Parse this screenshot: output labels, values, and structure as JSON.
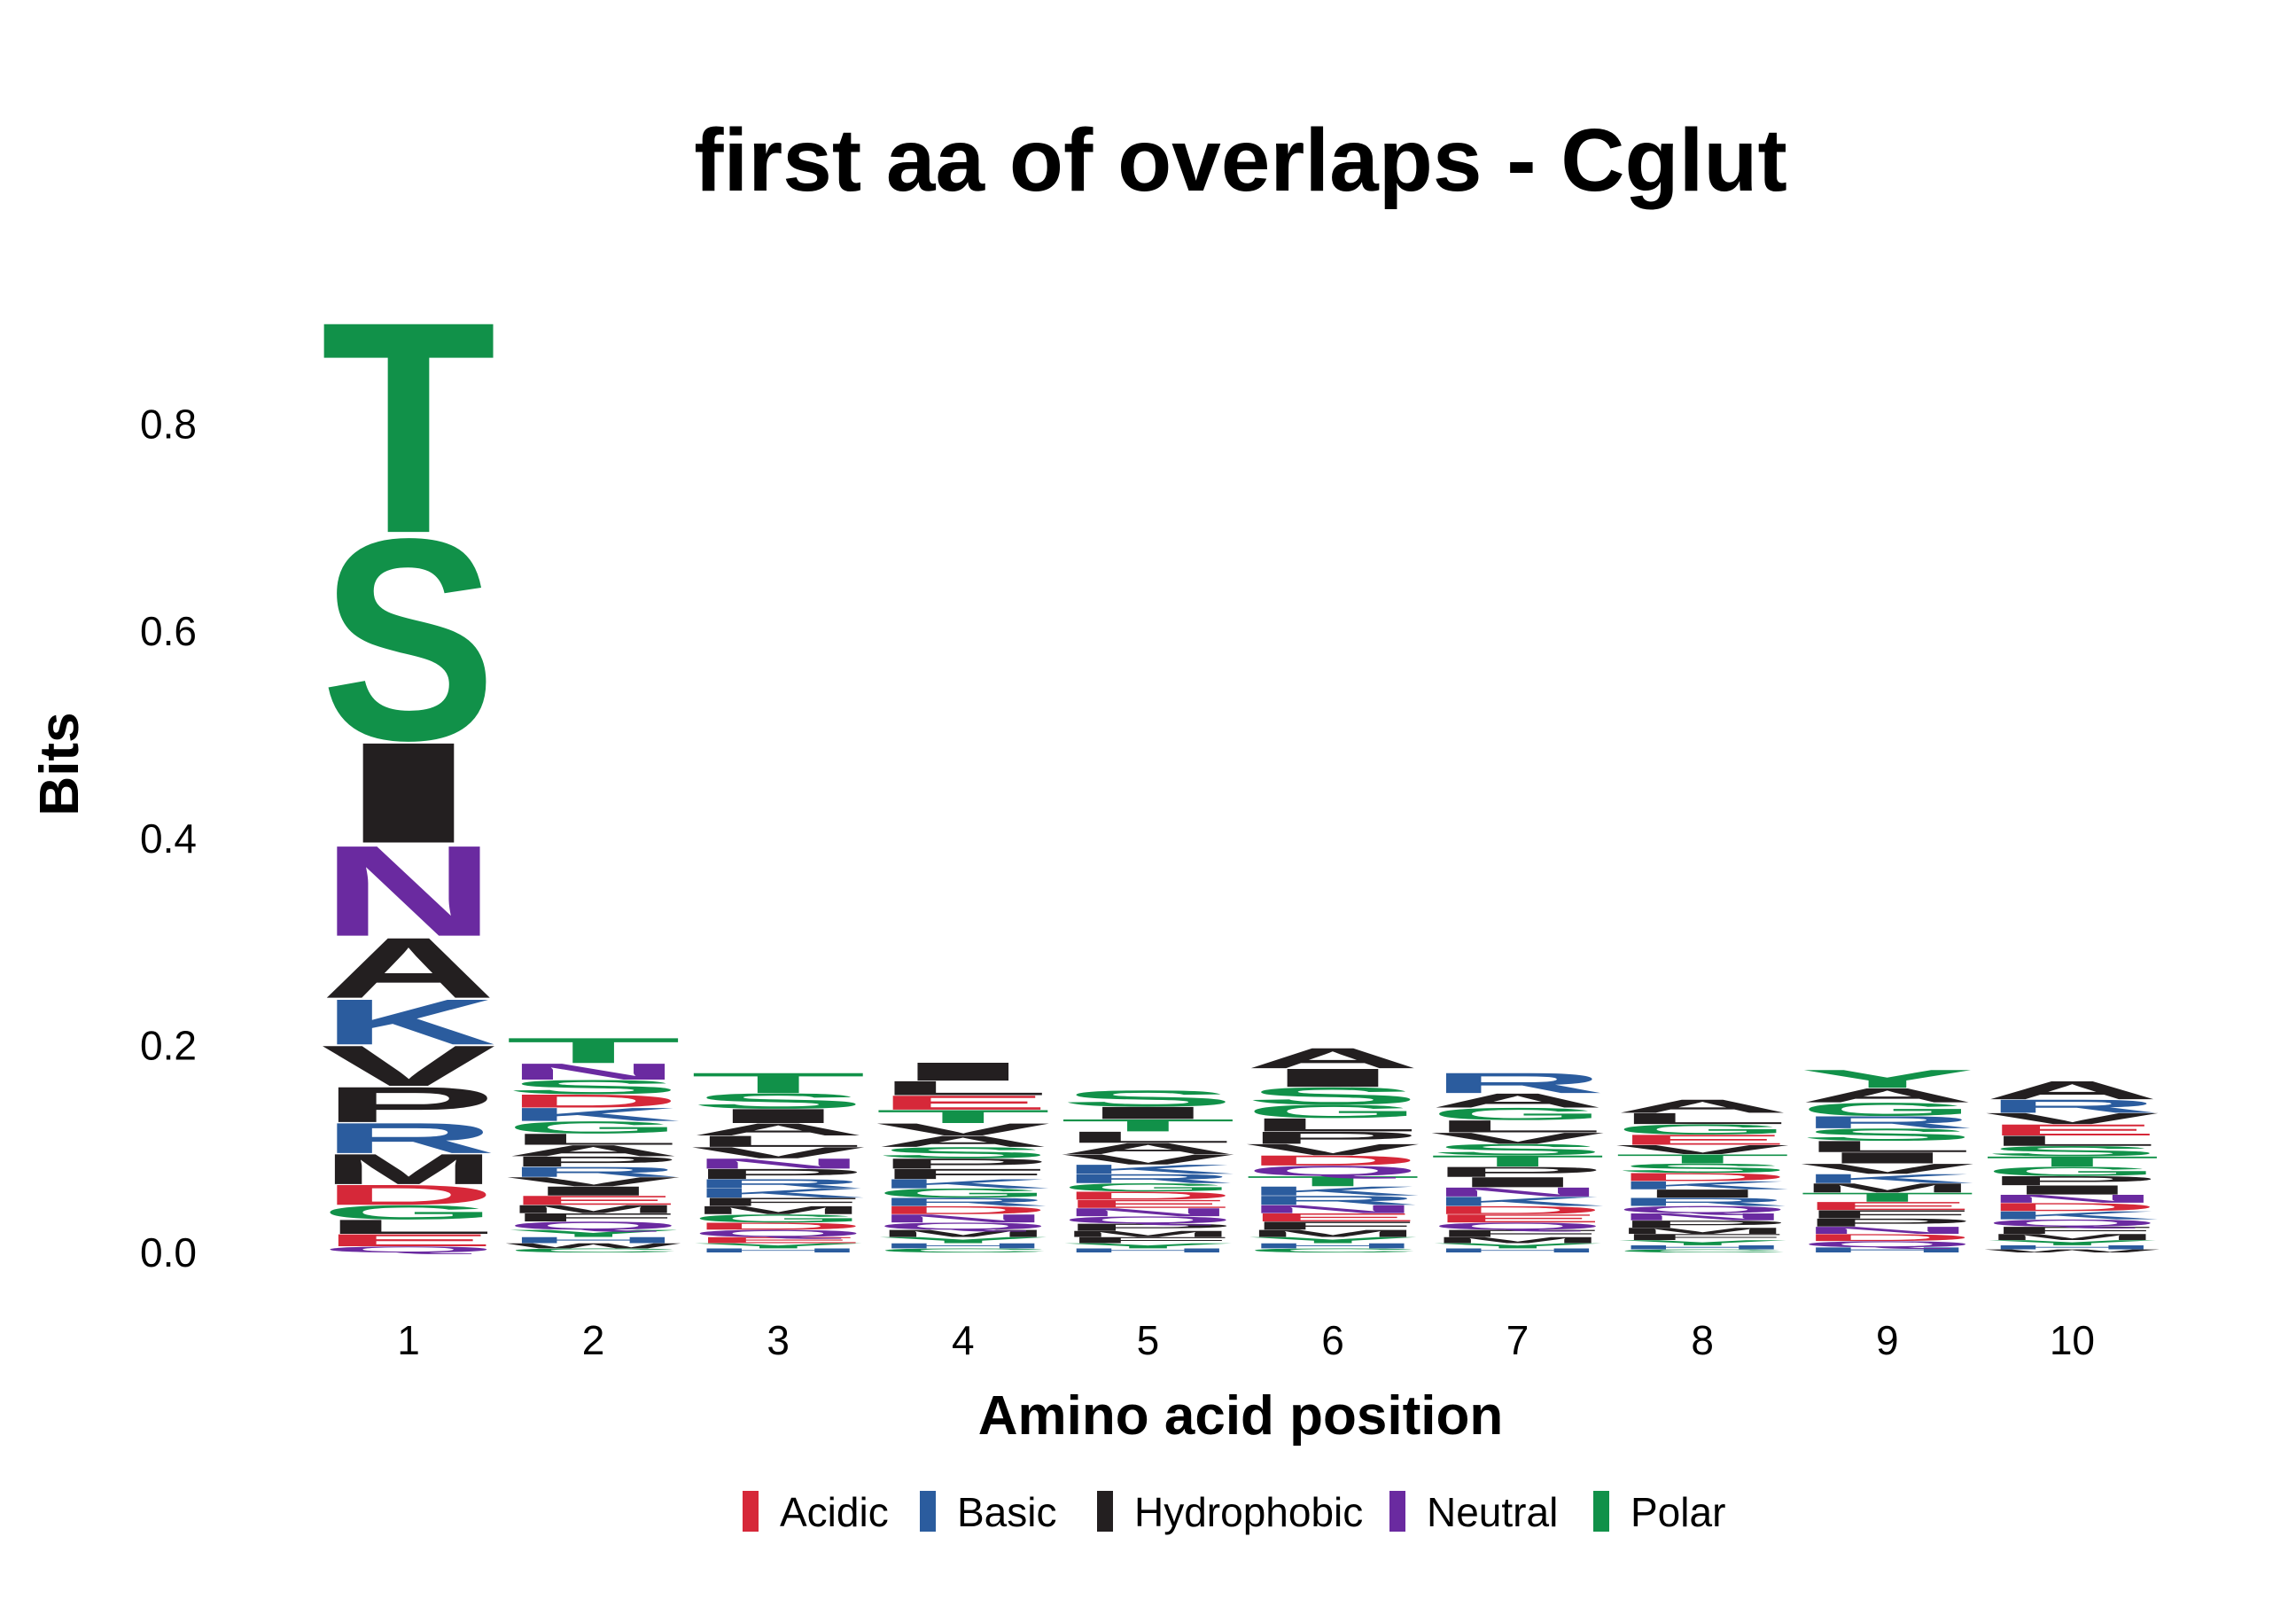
{
  "chart_data": {
    "type": "sequence-logo",
    "title": "first aa of overlaps - Cglut",
    "xlabel": "Amino acid position",
    "ylabel": "Bits",
    "ylim": [
      0,
      0.95
    ],
    "yticks": [
      0.0,
      0.2,
      0.4,
      0.6,
      0.8
    ],
    "ytick_labels": [
      "0.0",
      "0.2",
      "0.4",
      "0.6",
      "0.8"
    ],
    "positions": [
      "1",
      "2",
      "3",
      "4",
      "5",
      "6",
      "7",
      "8",
      "9",
      "10"
    ],
    "legend": [
      {
        "name": "Acidic",
        "color": "#d62839"
      },
      {
        "name": "Basic",
        "color": "#2b5c9e"
      },
      {
        "name": "Hydrophobic",
        "color": "#231f20"
      },
      {
        "name": "Neutral",
        "color": "#6a2aa0"
      },
      {
        "name": "Polar",
        "color": "#119149"
      }
    ],
    "stacks": [
      [
        {
          "letter": "T",
          "cls": "Polar",
          "bits": 0.21
        },
        {
          "letter": "S",
          "cls": "Polar",
          "bits": 0.2
        },
        {
          "letter": "I",
          "cls": "Hydrophobic",
          "bits": 0.1
        },
        {
          "letter": "N",
          "cls": "Neutral",
          "bits": 0.09
        },
        {
          "letter": "A",
          "cls": "Hydrophobic",
          "bits": 0.06
        },
        {
          "letter": "K",
          "cls": "Basic",
          "bits": 0.045
        },
        {
          "letter": "V",
          "cls": "Hydrophobic",
          "bits": 0.04
        },
        {
          "letter": "P",
          "cls": "Hydrophobic",
          "bits": 0.035
        },
        {
          "letter": "M",
          "cls": "Hydrophobic",
          "bits": 0.03
        },
        {
          "letter": "R",
          "cls": "Basic",
          "bits": 0.03
        },
        {
          "letter": "D",
          "cls": "Acidic",
          "bits": 0.02
        },
        {
          "letter": "L",
          "cls": "Hydrophobic",
          "bits": 0.014
        },
        {
          "letter": "G",
          "cls": "Polar",
          "bits": 0.014
        },
        {
          "letter": "E",
          "cls": "Acidic",
          "bits": 0.012
        },
        {
          "letter": "Q",
          "cls": "Neutral",
          "bits": 0.006
        }
      ],
      [
        {
          "letter": "T",
          "cls": "Polar",
          "bits": 0.025
        },
        {
          "letter": "N",
          "cls": "Neutral",
          "bits": 0.016
        },
        {
          "letter": "S",
          "cls": "Polar",
          "bits": 0.014
        },
        {
          "letter": "K",
          "cls": "Basic",
          "bits": 0.013
        },
        {
          "letter": "D",
          "cls": "Acidic",
          "bits": 0.013
        },
        {
          "letter": "G",
          "cls": "Polar",
          "bits": 0.012
        },
        {
          "letter": "A",
          "cls": "Hydrophobic",
          "bits": 0.011
        },
        {
          "letter": "L",
          "cls": "Hydrophobic",
          "bits": 0.011
        },
        {
          "letter": "R",
          "cls": "Basic",
          "bits": 0.01
        },
        {
          "letter": "P",
          "cls": "Hydrophobic",
          "bits": 0.01
        },
        {
          "letter": "E",
          "cls": "Acidic",
          "bits": 0.009
        },
        {
          "letter": "I",
          "cls": "Hydrophobic",
          "bits": 0.009
        },
        {
          "letter": "V",
          "cls": "Hydrophobic",
          "bits": 0.009
        },
        {
          "letter": "Q",
          "cls": "Neutral",
          "bits": 0.008
        },
        {
          "letter": "F",
          "cls": "Hydrophobic",
          "bits": 0.008
        },
        {
          "letter": "M",
          "cls": "Hydrophobic",
          "bits": 0.008
        },
        {
          "letter": "Y",
          "cls": "Polar",
          "bits": 0.007
        },
        {
          "letter": "H",
          "cls": "Basic",
          "bits": 0.006
        },
        {
          "letter": "W",
          "cls": "Hydrophobic",
          "bits": 0.005
        },
        {
          "letter": "C",
          "cls": "Polar",
          "bits": 0.004
        }
      ],
      [
        {
          "letter": "T",
          "cls": "Polar",
          "bits": 0.02
        },
        {
          "letter": "S",
          "cls": "Polar",
          "bits": 0.015
        },
        {
          "letter": "I",
          "cls": "Hydrophobic",
          "bits": 0.014
        },
        {
          "letter": "A",
          "cls": "Hydrophobic",
          "bits": 0.012
        },
        {
          "letter": "V",
          "cls": "Hydrophobic",
          "bits": 0.011
        },
        {
          "letter": "L",
          "cls": "Hydrophobic",
          "bits": 0.011
        },
        {
          "letter": "P",
          "cls": "Hydrophobic",
          "bits": 0.01
        },
        {
          "letter": "N",
          "cls": "Neutral",
          "bits": 0.01
        },
        {
          "letter": "K",
          "cls": "Basic",
          "bits": 0.009
        },
        {
          "letter": "R",
          "cls": "Basic",
          "bits": 0.009
        },
        {
          "letter": "G",
          "cls": "Polar",
          "bits": 0.008
        },
        {
          "letter": "M",
          "cls": "Hydrophobic",
          "bits": 0.008
        },
        {
          "letter": "F",
          "cls": "Hydrophobic",
          "bits": 0.008
        },
        {
          "letter": "Q",
          "cls": "Neutral",
          "bits": 0.007
        },
        {
          "letter": "D",
          "cls": "Acidic",
          "bits": 0.007
        },
        {
          "letter": "E",
          "cls": "Acidic",
          "bits": 0.006
        },
        {
          "letter": "Y",
          "cls": "Polar",
          "bits": 0.005
        },
        {
          "letter": "H",
          "cls": "Basic",
          "bits": 0.004
        }
      ],
      [
        {
          "letter": "I",
          "cls": "Hydrophobic",
          "bits": 0.018
        },
        {
          "letter": "E",
          "cls": "Acidic",
          "bits": 0.014
        },
        {
          "letter": "L",
          "cls": "Hydrophobic",
          "bits": 0.014
        },
        {
          "letter": "T",
          "cls": "Polar",
          "bits": 0.013
        },
        {
          "letter": "V",
          "cls": "Hydrophobic",
          "bits": 0.012
        },
        {
          "letter": "S",
          "cls": "Polar",
          "bits": 0.011
        },
        {
          "letter": "A",
          "cls": "Hydrophobic",
          "bits": 0.011
        },
        {
          "letter": "F",
          "cls": "Hydrophobic",
          "bits": 0.01
        },
        {
          "letter": "P",
          "cls": "Hydrophobic",
          "bits": 0.01
        },
        {
          "letter": "G",
          "cls": "Polar",
          "bits": 0.009
        },
        {
          "letter": "K",
          "cls": "Basic",
          "bits": 0.009
        },
        {
          "letter": "N",
          "cls": "Neutral",
          "bits": 0.008
        },
        {
          "letter": "D",
          "cls": "Acidic",
          "bits": 0.008
        },
        {
          "letter": "R",
          "cls": "Basic",
          "bits": 0.008
        },
        {
          "letter": "M",
          "cls": "Hydrophobic",
          "bits": 0.007
        },
        {
          "letter": "Q",
          "cls": "Neutral",
          "bits": 0.007
        },
        {
          "letter": "Y",
          "cls": "Polar",
          "bits": 0.006
        },
        {
          "letter": "H",
          "cls": "Basic",
          "bits": 0.005
        },
        {
          "letter": "C",
          "cls": "Polar",
          "bits": 0.004
        }
      ],
      [
        {
          "letter": "S",
          "cls": "Polar",
          "bits": 0.016
        },
        {
          "letter": "T",
          "cls": "Polar",
          "bits": 0.012
        },
        {
          "letter": "I",
          "cls": "Hydrophobic",
          "bits": 0.012
        },
        {
          "letter": "A",
          "cls": "Hydrophobic",
          "bits": 0.011
        },
        {
          "letter": "L",
          "cls": "Hydrophobic",
          "bits": 0.011
        },
        {
          "letter": "V",
          "cls": "Hydrophobic",
          "bits": 0.01
        },
        {
          "letter": "R",
          "cls": "Basic",
          "bits": 0.009
        },
        {
          "letter": "K",
          "cls": "Basic",
          "bits": 0.009
        },
        {
          "letter": "N",
          "cls": "Neutral",
          "bits": 0.008
        },
        {
          "letter": "E",
          "cls": "Acidic",
          "bits": 0.008
        },
        {
          "letter": "D",
          "cls": "Acidic",
          "bits": 0.008
        },
        {
          "letter": "G",
          "cls": "Polar",
          "bits": 0.008
        },
        {
          "letter": "P",
          "cls": "Hydrophobic",
          "bits": 0.007
        },
        {
          "letter": "Q",
          "cls": "Neutral",
          "bits": 0.007
        },
        {
          "letter": "F",
          "cls": "Hydrophobic",
          "bits": 0.006
        },
        {
          "letter": "M",
          "cls": "Hydrophobic",
          "bits": 0.006
        },
        {
          "letter": "Y",
          "cls": "Polar",
          "bits": 0.005
        },
        {
          "letter": "H",
          "cls": "Basic",
          "bits": 0.004
        }
      ],
      [
        {
          "letter": "A",
          "cls": "Hydrophobic",
          "bits": 0.02
        },
        {
          "letter": "I",
          "cls": "Hydrophobic",
          "bits": 0.018
        },
        {
          "letter": "S",
          "cls": "Polar",
          "bits": 0.017
        },
        {
          "letter": "L",
          "cls": "Hydrophobic",
          "bits": 0.013
        },
        {
          "letter": "G",
          "cls": "Polar",
          "bits": 0.013
        },
        {
          "letter": "P",
          "cls": "Hydrophobic",
          "bits": 0.012
        },
        {
          "letter": "V",
          "cls": "Hydrophobic",
          "bits": 0.011
        },
        {
          "letter": "T",
          "cls": "Polar",
          "bits": 0.01
        },
        {
          "letter": "Q",
          "cls": "Neutral",
          "bits": 0.01
        },
        {
          "letter": "D",
          "cls": "Acidic",
          "bits": 0.01
        },
        {
          "letter": "R",
          "cls": "Basic",
          "bits": 0.009
        },
        {
          "letter": "K",
          "cls": "Basic",
          "bits": 0.009
        },
        {
          "letter": "F",
          "cls": "Hydrophobic",
          "bits": 0.008
        },
        {
          "letter": "E",
          "cls": "Acidic",
          "bits": 0.008
        },
        {
          "letter": "N",
          "cls": "Neutral",
          "bits": 0.008
        },
        {
          "letter": "M",
          "cls": "Hydrophobic",
          "bits": 0.007
        },
        {
          "letter": "Y",
          "cls": "Polar",
          "bits": 0.006
        },
        {
          "letter": "H",
          "cls": "Basic",
          "bits": 0.005
        },
        {
          "letter": "C",
          "cls": "Polar",
          "bits": 0.004
        }
      ],
      [
        {
          "letter": "R",
          "cls": "Basic",
          "bits": 0.02
        },
        {
          "letter": "A",
          "cls": "Hydrophobic",
          "bits": 0.014
        },
        {
          "letter": "L",
          "cls": "Hydrophobic",
          "bits": 0.012
        },
        {
          "letter": "G",
          "cls": "Polar",
          "bits": 0.012
        },
        {
          "letter": "T",
          "cls": "Polar",
          "bits": 0.011
        },
        {
          "letter": "S",
          "cls": "Polar",
          "bits": 0.011
        },
        {
          "letter": "V",
          "cls": "Hydrophobic",
          "bits": 0.011
        },
        {
          "letter": "I",
          "cls": "Hydrophobic",
          "bits": 0.01
        },
        {
          "letter": "P",
          "cls": "Hydrophobic",
          "bits": 0.01
        },
        {
          "letter": "K",
          "cls": "Basic",
          "bits": 0.009
        },
        {
          "letter": "N",
          "cls": "Neutral",
          "bits": 0.009
        },
        {
          "letter": "E",
          "cls": "Acidic",
          "bits": 0.008
        },
        {
          "letter": "D",
          "cls": "Acidic",
          "bits": 0.008
        },
        {
          "letter": "F",
          "cls": "Hydrophobic",
          "bits": 0.007
        },
        {
          "letter": "Q",
          "cls": "Neutral",
          "bits": 0.007
        },
        {
          "letter": "M",
          "cls": "Hydrophobic",
          "bits": 0.006
        },
        {
          "letter": "Y",
          "cls": "Polar",
          "bits": 0.005
        },
        {
          "letter": "H",
          "cls": "Basic",
          "bits": 0.004
        }
      ],
      [
        {
          "letter": "A",
          "cls": "Hydrophobic",
          "bits": 0.013
        },
        {
          "letter": "L",
          "cls": "Hydrophobic",
          "bits": 0.011
        },
        {
          "letter": "E",
          "cls": "Acidic",
          "bits": 0.01
        },
        {
          "letter": "G",
          "cls": "Polar",
          "bits": 0.01
        },
        {
          "letter": "S",
          "cls": "Polar",
          "bits": 0.009
        },
        {
          "letter": "T",
          "cls": "Polar",
          "bits": 0.009
        },
        {
          "letter": "V",
          "cls": "Hydrophobic",
          "bits": 0.009
        },
        {
          "letter": "R",
          "cls": "Basic",
          "bits": 0.008
        },
        {
          "letter": "I",
          "cls": "Hydrophobic",
          "bits": 0.008
        },
        {
          "letter": "K",
          "cls": "Basic",
          "bits": 0.008
        },
        {
          "letter": "D",
          "cls": "Acidic",
          "bits": 0.008
        },
        {
          "letter": "P",
          "cls": "Hydrophobic",
          "bits": 0.007
        },
        {
          "letter": "N",
          "cls": "Neutral",
          "bits": 0.007
        },
        {
          "letter": "Q",
          "cls": "Neutral",
          "bits": 0.007
        },
        {
          "letter": "F",
          "cls": "Hydrophobic",
          "bits": 0.006
        },
        {
          "letter": "M",
          "cls": "Hydrophobic",
          "bits": 0.006
        },
        {
          "letter": "Y",
          "cls": "Polar",
          "bits": 0.005
        },
        {
          "letter": "H",
          "cls": "Basic",
          "bits": 0.004
        },
        {
          "letter": "C",
          "cls": "Polar",
          "bits": 0.003
        }
      ],
      [
        {
          "letter": "Y",
          "cls": "Polar",
          "bits": 0.018
        },
        {
          "letter": "A",
          "cls": "Hydrophobic",
          "bits": 0.014
        },
        {
          "letter": "G",
          "cls": "Polar",
          "bits": 0.013
        },
        {
          "letter": "S",
          "cls": "Polar",
          "bits": 0.012
        },
        {
          "letter": "R",
          "cls": "Basic",
          "bits": 0.012
        },
        {
          "letter": "I",
          "cls": "Hydrophobic",
          "bits": 0.011
        },
        {
          "letter": "L",
          "cls": "Hydrophobic",
          "bits": 0.011
        },
        {
          "letter": "V",
          "cls": "Hydrophobic",
          "bits": 0.01
        },
        {
          "letter": "T",
          "cls": "Polar",
          "bits": 0.009
        },
        {
          "letter": "M",
          "cls": "Hydrophobic",
          "bits": 0.009
        },
        {
          "letter": "K",
          "cls": "Basic",
          "bits": 0.009
        },
        {
          "letter": "P",
          "cls": "Hydrophobic",
          "bits": 0.008
        },
        {
          "letter": "F",
          "cls": "Hydrophobic",
          "bits": 0.008
        },
        {
          "letter": "E",
          "cls": "Acidic",
          "bits": 0.008
        },
        {
          "letter": "D",
          "cls": "Acidic",
          "bits": 0.007
        },
        {
          "letter": "N",
          "cls": "Neutral",
          "bits": 0.007
        },
        {
          "letter": "Q",
          "cls": "Neutral",
          "bits": 0.006
        },
        {
          "letter": "H",
          "cls": "Basic",
          "bits": 0.005
        }
      ],
      [
        {
          "letter": "A",
          "cls": "Hydrophobic",
          "bits": 0.018
        },
        {
          "letter": "R",
          "cls": "Basic",
          "bits": 0.013
        },
        {
          "letter": "E",
          "cls": "Acidic",
          "bits": 0.011
        },
        {
          "letter": "V",
          "cls": "Hydrophobic",
          "bits": 0.011
        },
        {
          "letter": "T",
          "cls": "Polar",
          "bits": 0.01
        },
        {
          "letter": "S",
          "cls": "Polar",
          "bits": 0.01
        },
        {
          "letter": "L",
          "cls": "Hydrophobic",
          "bits": 0.01
        },
        {
          "letter": "I",
          "cls": "Hydrophobic",
          "bits": 0.009
        },
        {
          "letter": "P",
          "cls": "Hydrophobic",
          "bits": 0.009
        },
        {
          "letter": "G",
          "cls": "Polar",
          "bits": 0.009
        },
        {
          "letter": "K",
          "cls": "Basic",
          "bits": 0.008
        },
        {
          "letter": "D",
          "cls": "Acidic",
          "bits": 0.008
        },
        {
          "letter": "N",
          "cls": "Neutral",
          "bits": 0.008
        },
        {
          "letter": "F",
          "cls": "Hydrophobic",
          "bits": 0.007
        },
        {
          "letter": "Q",
          "cls": "Neutral",
          "bits": 0.007
        },
        {
          "letter": "M",
          "cls": "Hydrophobic",
          "bits": 0.006
        },
        {
          "letter": "Y",
          "cls": "Polar",
          "bits": 0.005
        },
        {
          "letter": "H",
          "cls": "Basic",
          "bits": 0.004
        },
        {
          "letter": "W",
          "cls": "Hydrophobic",
          "bits": 0.003
        }
      ]
    ]
  }
}
